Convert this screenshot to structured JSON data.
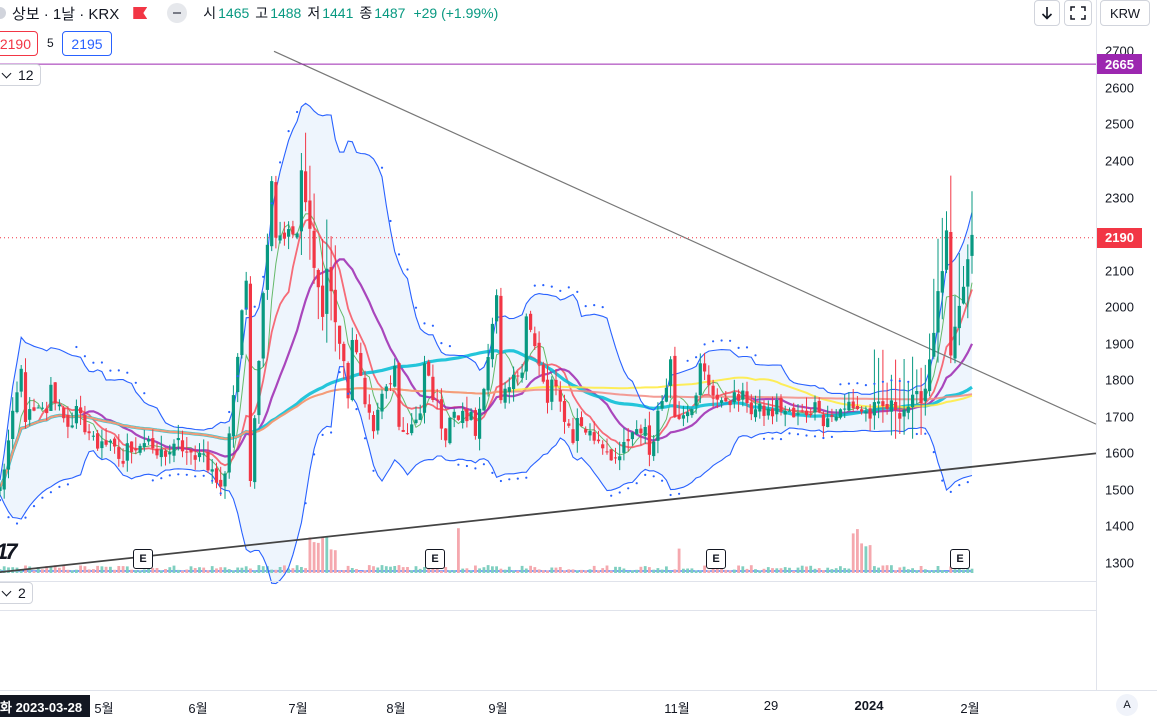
{
  "header": {
    "symbol_title": "상보 · 1날 · KRX",
    "open_label": "시",
    "open": "1465",
    "high_label": "고",
    "high": "1488",
    "low_label": "저",
    "low": "1441",
    "close_label": "종",
    "close": "1487",
    "change": "+29 (+1.99%)",
    "sell_price": "2190",
    "spread": "5",
    "buy_price": "2195",
    "indicator_count": "12",
    "sub_indicator_count": "2",
    "currency": "KRW"
  },
  "colors": {
    "up": "#089981",
    "down": "#f23645",
    "bb_fill": "#e3eefb",
    "bb_line": "#2962ff",
    "sar": "#2962ff",
    "ma5": "#4caf50",
    "ma10": "#f7525f",
    "ma20": "#9c27b0",
    "ma60": "#00bcd4",
    "ma120": "#ffeb3b",
    "ma240": "#f28b82",
    "trend": "#555555",
    "res_line": "#9c27b0"
  },
  "time_axis": {
    "cursor_date": "화 2023-03-28",
    "labels": [
      "5월",
      "6월",
      "7월",
      "8월",
      "9월",
      "11월",
      "29",
      "2024",
      "2월"
    ]
  },
  "price_axis": {
    "ticks": [
      "2700",
      "2600",
      "2500",
      "2400",
      "2300",
      "2200",
      "2100",
      "2000",
      "1900",
      "1800",
      "1700",
      "1600",
      "1500",
      "1400",
      "1300"
    ],
    "resistance_tag": "2665",
    "current_tag": "2190"
  },
  "earnings_marker": "E",
  "logo_text": "17",
  "chart_data": {
    "type": "candlestick",
    "ylim": [
      1275,
      2720
    ],
    "resistance_price": 2665,
    "current_price": 2190,
    "x_labels": [
      "5월",
      "6월",
      "7월",
      "8월",
      "9월",
      "11월",
      "29",
      "2024",
      "2월"
    ],
    "ohlc_milestones": [
      [
        1500,
        1690
      ],
      [
        1700,
        1880
      ],
      [
        1780,
        1720
      ],
      [
        1720,
        1650
      ],
      [
        1650,
        1610
      ],
      [
        1610,
        1570
      ],
      [
        1590,
        1640
      ],
      [
        1640,
        1610
      ],
      [
        1620,
        1560
      ],
      [
        1540,
        1480
      ],
      [
        1500,
        2150
      ],
      [
        2200,
        2450
      ],
      [
        2400,
        2200
      ],
      [
        2150,
        1950
      ],
      [
        1950,
        1750
      ],
      [
        1700,
        1650
      ],
      [
        1650,
        1850
      ],
      [
        1850,
        1700
      ],
      [
        1700,
        1620
      ],
      [
        1620,
        1700
      ],
      [
        1720,
        2050
      ],
      [
        2020,
        1850
      ],
      [
        1820,
        1730
      ],
      [
        1700,
        1640
      ],
      [
        1640,
        1630
      ],
      [
        1620,
        1560
      ],
      [
        1580,
        1680
      ],
      [
        1700,
        1880
      ],
      [
        1850,
        1750
      ],
      [
        1750,
        1720
      ],
      [
        1720,
        1750
      ],
      [
        1740,
        1710
      ],
      [
        1700,
        1690
      ],
      [
        1690,
        1740
      ],
      [
        1740,
        1720
      ],
      [
        1720,
        1700
      ],
      [
        1710,
        1730
      ],
      [
        1720,
        1760
      ],
      [
        1800,
        2200
      ],
      [
        2180,
        2190
      ]
    ],
    "trend_upper": {
      "from": [
        2700,
        "6월 하순"
      ],
      "to": [
        1680,
        "2월 이후"
      ]
    },
    "trend_lower": {
      "from": [
        1275,
        "3월"
      ],
      "to": [
        1600,
        "2월 이후"
      ]
    }
  }
}
